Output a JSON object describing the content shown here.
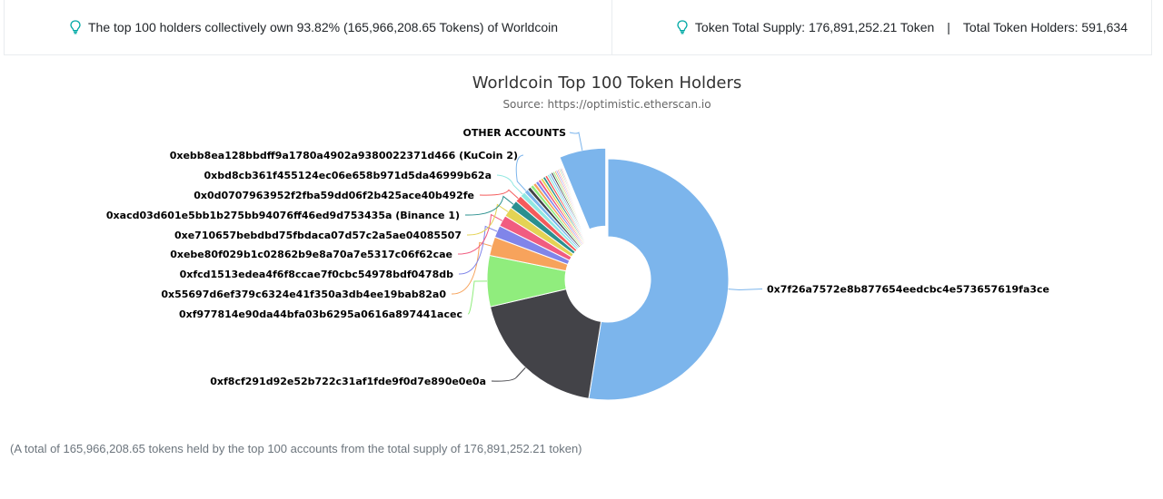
{
  "banner": {
    "left_text": "The top 100 holders collectively own 93.82% (165,966,208.65 Tokens) of Worldcoin",
    "supply_text": "Token Total Supply: 176,891,252.21 Token",
    "separator": "|",
    "holders_text": "Total Token Holders: 591,634",
    "icon": "lightbulb-icon",
    "icon_color": "#00a9a5"
  },
  "footnote": "(A total of 165,966,208.65 tokens held by the top 100 accounts from the total supply of 176,891,252.21 token)",
  "chart_data": {
    "type": "pie",
    "title": "Worldcoin Top 100 Token Holders",
    "subtitle": "Source: https://optimistic.etherscan.io",
    "donut": true,
    "slices": [
      {
        "label": "0x7f26a7572e8b877654eedcbc4e573657619fa3ce",
        "value": 52.2,
        "color": "#7cb5ec",
        "labeled": true,
        "label_side": "right"
      },
      {
        "label": "0xf8cf291d92e52b722c31af1fde9f0d7e890e0e0a",
        "value": 18.7,
        "color": "#434348",
        "labeled": true,
        "label_side": "left"
      },
      {
        "label": "0xf977814e90da44bfa03b6295a0616a897441acec",
        "value": 6.8,
        "color": "#90ed7d",
        "labeled": true,
        "label_side": "left"
      },
      {
        "label": "0x55697d6ef379c6324e41f350a3db4ee19bab82a0",
        "value": 2.5,
        "color": "#f7a35c",
        "labeled": true,
        "label_side": "left"
      },
      {
        "label": "0xfcd1513edea4f6f8ccae7f0cbc54978bdf0478db",
        "value": 1.6,
        "color": "#8085e9",
        "labeled": true,
        "label_side": "left"
      },
      {
        "label": "0xebe80f029b1c02862b9e8a70a7e5317c06f62cae",
        "value": 1.5,
        "color": "#f15c80",
        "labeled": true,
        "label_side": "left"
      },
      {
        "label": "0xe710657bebdbd75fbdaca07d57c2a5ae04085507",
        "value": 1.3,
        "color": "#e4d354",
        "labeled": true,
        "label_side": "left"
      },
      {
        "label": "0xacd03d601e5bb1b275bb94076ff46ed9d753435a (Binance 1)",
        "value": 1.1,
        "color": "#2b908f",
        "labeled": true,
        "label_side": "left"
      },
      {
        "label": "0x0d0707963952f2fba59dd06f2b425ace40b492fe",
        "value": 0.9,
        "color": "#f45b5b",
        "labeled": true,
        "label_side": "left"
      },
      {
        "label": "0xbd8cb361f455124ec06e658b971d5da46999b62a",
        "value": 0.7,
        "color": "#91e8e1",
        "labeled": true,
        "label_side": "left"
      },
      {
        "label": "0xebb8ea128bbdff9a1780a4902a9380022371d466 (KuCoin 2)",
        "value": 0.55,
        "color": "#7cb5ec",
        "labeled": true,
        "label_side": "left"
      },
      {
        "label": "",
        "value": 0.5,
        "color": "#434348",
        "labeled": false
      },
      {
        "label": "",
        "value": 0.45,
        "color": "#90ed7d",
        "labeled": false
      },
      {
        "label": "",
        "value": 0.42,
        "color": "#f7a35c",
        "labeled": false
      },
      {
        "label": "",
        "value": 0.4,
        "color": "#8085e9",
        "labeled": false
      },
      {
        "label": "",
        "value": 0.38,
        "color": "#f15c80",
        "labeled": false
      },
      {
        "label": "",
        "value": 0.36,
        "color": "#e4d354",
        "labeled": false
      },
      {
        "label": "",
        "value": 0.34,
        "color": "#2b908f",
        "labeled": false
      },
      {
        "label": "",
        "value": 0.32,
        "color": "#f45b5b",
        "labeled": false
      },
      {
        "label": "",
        "value": 0.3,
        "color": "#91e8e1",
        "labeled": false
      },
      {
        "label": "",
        "value": 0.28,
        "color": "#7cb5ec",
        "labeled": false
      },
      {
        "label": "",
        "value": 0.26,
        "color": "#434348",
        "labeled": false
      },
      {
        "label": "",
        "value": 0.24,
        "color": "#90ed7d",
        "labeled": false
      },
      {
        "label": "",
        "value": 0.22,
        "color": "#f7a35c",
        "labeled": false
      },
      {
        "label": "",
        "value": 0.2,
        "color": "#8085e9",
        "labeled": false
      },
      {
        "label": "",
        "value": 0.18,
        "color": "#f15c80",
        "labeled": false
      },
      {
        "label": "",
        "value": 0.17,
        "color": "#e4d354",
        "labeled": false
      },
      {
        "label": "",
        "value": 0.16,
        "color": "#2b908f",
        "labeled": false
      },
      {
        "label": "",
        "value": 0.15,
        "color": "#f45b5b",
        "labeled": false
      },
      {
        "label": "OTHER ACCOUNTS",
        "value": 6.18,
        "color": "#7cb5ec",
        "labeled": true,
        "label_side": "top",
        "sliced": true
      }
    ]
  }
}
